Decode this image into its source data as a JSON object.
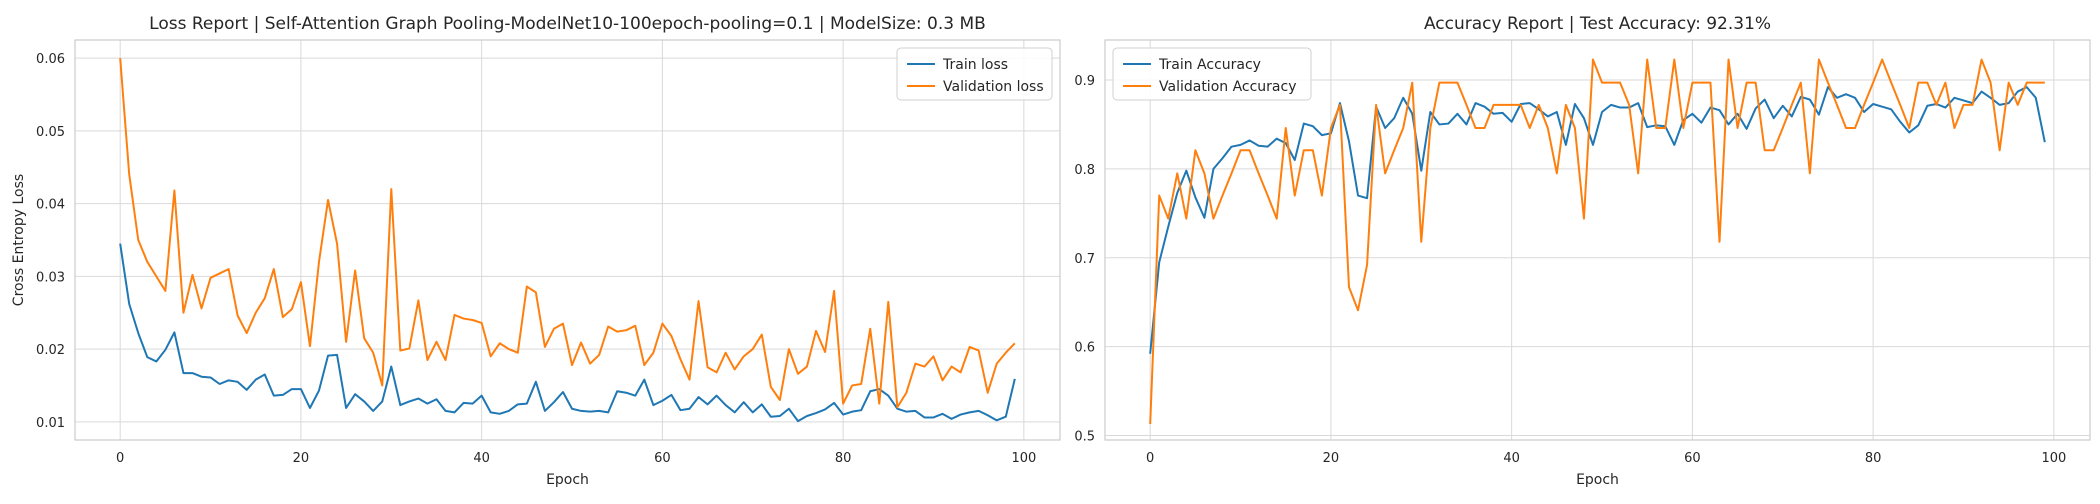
{
  "colors": {
    "train": "#1f77b4",
    "validation": "#ff7f0e",
    "grid": "#d9d9d9",
    "spine": "#cccccc"
  },
  "chart_data": [
    {
      "type": "line",
      "title": "Loss Report | Self-Attention Graph Pooling-ModelNet10-100epoch-pooling=0.1 | ModelSize: 0.3 MB",
      "xlabel": "Epoch",
      "ylabel": "Cross Entropy Loss",
      "xlim": [
        -5,
        104
      ],
      "ylim": [
        0.0075,
        0.0625
      ],
      "xticks": [
        0,
        20,
        40,
        60,
        80,
        100
      ],
      "xtick_labels": [
        "0",
        "20",
        "40",
        "60",
        "80",
        "100"
      ],
      "yticks": [
        0.01,
        0.02,
        0.03,
        0.04,
        0.05,
        0.06
      ],
      "ytick_labels": [
        "0.01",
        "0.02",
        "0.03",
        "0.04",
        "0.05",
        "0.06"
      ],
      "grid": true,
      "legend": "top-right",
      "series": [
        {
          "name": "Train loss",
          "color": "#1f77b4",
          "values": [
            0.0345,
            0.0262,
            0.0222,
            0.0189,
            0.0183,
            0.0199,
            0.0223,
            0.0167,
            0.0167,
            0.0162,
            0.0161,
            0.0152,
            0.0157,
            0.0155,
            0.0144,
            0.0158,
            0.0165,
            0.0136,
            0.0137,
            0.0145,
            0.0145,
            0.0119,
            0.0143,
            0.0191,
            0.0192,
            0.0119,
            0.0138,
            0.0128,
            0.0115,
            0.0128,
            0.0176,
            0.0123,
            0.0128,
            0.0132,
            0.0125,
            0.0131,
            0.0115,
            0.0113,
            0.0126,
            0.0125,
            0.0136,
            0.0113,
            0.0111,
            0.0115,
            0.0124,
            0.0125,
            0.0155,
            0.0115,
            0.0127,
            0.0141,
            0.0118,
            0.0115,
            0.0114,
            0.0115,
            0.0113,
            0.0142,
            0.014,
            0.0136,
            0.0158,
            0.0123,
            0.0129,
            0.0137,
            0.0116,
            0.0118,
            0.0134,
            0.0124,
            0.0136,
            0.0123,
            0.0113,
            0.0127,
            0.0113,
            0.0124,
            0.0107,
            0.0108,
            0.0118,
            0.0101,
            0.0108,
            0.0112,
            0.0117,
            0.0126,
            0.011,
            0.0114,
            0.0116,
            0.0142,
            0.0145,
            0.0136,
            0.0118,
            0.0114,
            0.0115,
            0.0106,
            0.0106,
            0.0111,
            0.0104,
            0.011,
            0.0113,
            0.0115,
            0.0109,
            0.0102,
            0.0107,
            0.0159
          ]
        },
        {
          "name": "Validation loss",
          "color": "#ff7f0e",
          "values": [
            0.06,
            0.044,
            0.035,
            0.032,
            0.03,
            0.028,
            0.0418,
            0.025,
            0.0302,
            0.0256,
            0.0298,
            0.0304,
            0.031,
            0.0246,
            0.0222,
            0.025,
            0.027,
            0.031,
            0.0244,
            0.0255,
            0.0292,
            0.0204,
            0.032,
            0.0405,
            0.0345,
            0.021,
            0.0308,
            0.0215,
            0.0195,
            0.015,
            0.042,
            0.0198,
            0.0201,
            0.0267,
            0.0185,
            0.021,
            0.0185,
            0.0247,
            0.0242,
            0.024,
            0.0236,
            0.019,
            0.0208,
            0.02,
            0.0195,
            0.0286,
            0.0278,
            0.0203,
            0.0228,
            0.0235,
            0.0178,
            0.0209,
            0.018,
            0.0192,
            0.0231,
            0.0224,
            0.0226,
            0.0232,
            0.0178,
            0.0195,
            0.0235,
            0.0218,
            0.0186,
            0.0158,
            0.0266,
            0.0175,
            0.0168,
            0.0195,
            0.0172,
            0.019,
            0.02,
            0.022,
            0.0148,
            0.013,
            0.02,
            0.0166,
            0.0176,
            0.0225,
            0.0196,
            0.028,
            0.0125,
            0.015,
            0.0152,
            0.0228,
            0.0125,
            0.0265,
            0.012,
            0.014,
            0.018,
            0.0176,
            0.019,
            0.0157,
            0.0176,
            0.0168,
            0.0203,
            0.0198,
            0.014,
            0.018,
            0.0195,
            0.0208
          ]
        }
      ]
    },
    {
      "type": "line",
      "title": "Accuracy Report | Test Accuracy: 92.31%",
      "xlabel": "Epoch",
      "ylabel": "",
      "xlim": [
        -5,
        104
      ],
      "ylim": [
        0.495,
        0.945
      ],
      "xticks": [
        0,
        20,
        40,
        60,
        80,
        100
      ],
      "xtick_labels": [
        "0",
        "20",
        "40",
        "60",
        "80",
        "100"
      ],
      "yticks": [
        0.5,
        0.6,
        0.7,
        0.8,
        0.9
      ],
      "ytick_labels": [
        "0.5",
        "0.6",
        "0.7",
        "0.8",
        "0.9"
      ],
      "grid": true,
      "legend": "top-left",
      "series": [
        {
          "name": "Train Accuracy",
          "color": "#1f77b4",
          "values": [
            0.592,
            0.695,
            0.735,
            0.773,
            0.798,
            0.768,
            0.745,
            0.8,
            0.812,
            0.825,
            0.827,
            0.832,
            0.826,
            0.825,
            0.834,
            0.829,
            0.81,
            0.851,
            0.848,
            0.838,
            0.84,
            0.874,
            0.831,
            0.77,
            0.767,
            0.87,
            0.846,
            0.857,
            0.88,
            0.862,
            0.798,
            0.864,
            0.85,
            0.851,
            0.862,
            0.85,
            0.874,
            0.87,
            0.862,
            0.863,
            0.853,
            0.873,
            0.874,
            0.867,
            0.859,
            0.864,
            0.827,
            0.873,
            0.857,
            0.827,
            0.864,
            0.872,
            0.869,
            0.869,
            0.874,
            0.847,
            0.849,
            0.848,
            0.827,
            0.855,
            0.862,
            0.852,
            0.869,
            0.866,
            0.85,
            0.862,
            0.845,
            0.868,
            0.878,
            0.857,
            0.871,
            0.859,
            0.881,
            0.878,
            0.861,
            0.892,
            0.88,
            0.884,
            0.88,
            0.864,
            0.873,
            0.87,
            0.867,
            0.853,
            0.841,
            0.849,
            0.871,
            0.873,
            0.869,
            0.88,
            0.877,
            0.874,
            0.887,
            0.88,
            0.872,
            0.874,
            0.887,
            0.892,
            0.88,
            0.83
          ]
        },
        {
          "name": "Validation Accuracy",
          "color": "#ff7f0e",
          "values": [
            0.513,
            0.77,
            0.744,
            0.795,
            0.744,
            0.821,
            0.795,
            0.744,
            0.77,
            0.795,
            0.821,
            0.821,
            0.795,
            0.77,
            0.744,
            0.846,
            0.77,
            0.821,
            0.821,
            0.77,
            0.846,
            0.872,
            0.667,
            0.641,
            0.692,
            0.872,
            0.795,
            0.821,
            0.846,
            0.897,
            0.718,
            0.846,
            0.897,
            0.897,
            0.897,
            0.872,
            0.846,
            0.846,
            0.872,
            0.872,
            0.872,
            0.872,
            0.846,
            0.872,
            0.846,
            0.795,
            0.872,
            0.846,
            0.744,
            0.923,
            0.897,
            0.897,
            0.897,
            0.872,
            0.795,
            0.923,
            0.846,
            0.846,
            0.923,
            0.846,
            0.897,
            0.897,
            0.897,
            0.718,
            0.923,
            0.846,
            0.897,
            0.897,
            0.821,
            0.821,
            0.846,
            0.872,
            0.897,
            0.795,
            0.923,
            0.897,
            0.872,
            0.846,
            0.846,
            0.872,
            0.897,
            0.923,
            0.897,
            0.872,
            0.846,
            0.897,
            0.897,
            0.872,
            0.897,
            0.846,
            0.872,
            0.872,
            0.923,
            0.897,
            0.821,
            0.897,
            0.872,
            0.897,
            0.897,
            0.897
          ]
        }
      ]
    }
  ]
}
